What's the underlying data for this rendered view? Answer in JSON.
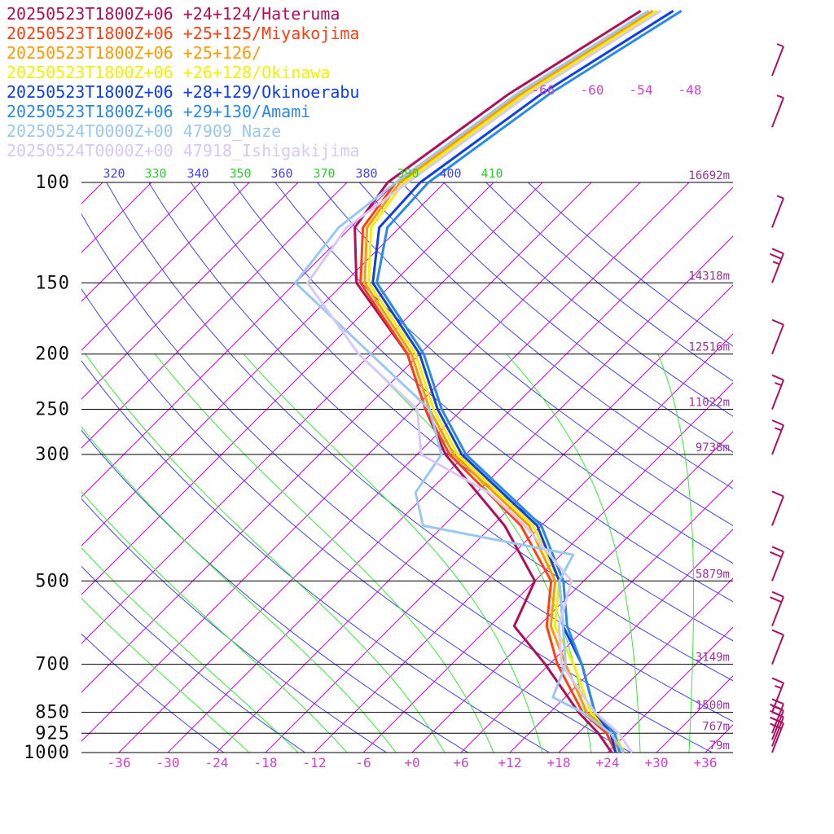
{
  "chart_data": {
    "type": "line",
    "chart_kind": "skew-t log-p sounding",
    "y_axis": {
      "scale": "log",
      "unit": "hPa",
      "range": [
        1000,
        100
      ],
      "ticks": [
        100,
        150,
        200,
        250,
        300,
        500,
        700,
        850,
        925,
        1000
      ]
    },
    "x_axis": {
      "unit": "°C",
      "range": [
        -40,
        40
      ],
      "ticks": [
        "-36",
        "-30",
        "-24",
        "-18",
        "-12",
        "-6",
        "+0",
        "+6",
        "+12",
        "+18",
        "+24",
        "+30",
        "+36"
      ]
    },
    "height_labels": [
      {
        "pressure": 100,
        "label": "16692m"
      },
      {
        "pressure": 150,
        "label": "14318m"
      },
      {
        "pressure": 200,
        "label": "12516m"
      },
      {
        "pressure": 250,
        "label": "11022m"
      },
      {
        "pressure": 300,
        "label": "9738m"
      },
      {
        "pressure": 500,
        "label": "5879m"
      },
      {
        "pressure": 700,
        "label": "3149m"
      },
      {
        "pressure": 850,
        "label": "1500m"
      },
      {
        "pressure": 925,
        "label": "767m"
      },
      {
        "pressure": 1000,
        "label": "79m"
      }
    ],
    "isotherm_labels": [
      "-66",
      "-60",
      "-54",
      "-48"
    ],
    "theta_labels": [
      "320",
      "330",
      "340",
      "350",
      "360",
      "370",
      "380",
      "390",
      "400",
      "410"
    ],
    "grid": true,
    "colors": {
      "isobar": "#000000",
      "isotherm": "#dd00dd",
      "dry_adiabat": "#4444ee",
      "moist_adiabat": "#33ee33",
      "axis_label": "#cc44cc",
      "height_label": "#993399"
    },
    "legend_position": "top-left",
    "series": [
      {
        "name": "20250523T1800Z+06 +24+124/Hateruma",
        "color": "#b0105a",
        "pressure": [
          1000,
          925,
          850,
          700,
          600,
          500,
          400,
          300,
          250,
          200,
          150,
          120,
          100
        ],
        "temperature": [
          24.5,
          20.5,
          15.5,
          5.5,
          -3.0,
          -6.0,
          -16.5,
          -32.5,
          -40.5,
          -49.5,
          -64.5,
          -71.5,
          -73.0
        ]
      },
      {
        "name": "20250523T1800Z+06 +25+125/Miyakojima",
        "color": "#ff4010",
        "pressure": [
          1000,
          925,
          850,
          700,
          600,
          500,
          400,
          300,
          250,
          200,
          150,
          120,
          100
        ],
        "temperature": [
          25.0,
          21.5,
          16.0,
          7.0,
          1.0,
          -4.0,
          -14.5,
          -32.0,
          -40.5,
          -49.5,
          -64.0,
          -70.5,
          -72.0
        ]
      },
      {
        "name": "20250523T1800Z+06 +25+126/",
        "color": "#ff9a00",
        "pressure": [
          1000,
          925,
          850,
          700,
          600,
          500,
          400,
          300,
          250,
          200,
          150,
          120,
          100
        ],
        "temperature": [
          25.5,
          22.0,
          16.5,
          8.0,
          1.5,
          -3.5,
          -13.5,
          -31.5,
          -40.0,
          -49.0,
          -63.5,
          -70.0,
          -71.5
        ]
      },
      {
        "name": "20250523T1800Z+06 +26+128/Okinawa",
        "color": "#f5ef00",
        "pressure": [
          1000,
          925,
          850,
          700,
          600,
          500,
          400,
          300,
          250,
          200,
          150,
          120,
          100
        ],
        "temperature": [
          26.0,
          22.5,
          17.0,
          9.0,
          2.0,
          -3.0,
          -13.0,
          -31.0,
          -39.5,
          -48.5,
          -63.0,
          -69.5,
          -71.0
        ]
      },
      {
        "name": "20250523T1800Z+06 +28+129/Okinoerabu",
        "color": "#1040e0",
        "pressure": [
          1000,
          925,
          850,
          700,
          600,
          500,
          400,
          300,
          250,
          200,
          150,
          120,
          100
        ],
        "temperature": [
          25.0,
          22.0,
          17.5,
          10.0,
          3.0,
          -3.0,
          -12.5,
          -30.5,
          -39.0,
          -48.0,
          -62.5,
          -68.5,
          -69.0
        ]
      },
      {
        "name": "20250523T1800Z+06 +29+130/Amami",
        "color": "#2a8ae8",
        "pressure": [
          1000,
          925,
          850,
          700,
          600,
          500,
          400,
          300,
          250,
          200,
          150,
          120,
          100
        ],
        "temperature": [
          25.5,
          22.5,
          17.5,
          10.0,
          3.5,
          -2.5,
          -12.0,
          -30.0,
          -38.5,
          -47.5,
          -62.0,
          -67.5,
          -68.0
        ]
      },
      {
        "name": "20250524T0000Z+00 47909_Naze",
        "color": "#99c8f0",
        "pressure": [
          1000,
          925,
          850,
          800,
          700,
          600,
          500,
          450,
          400,
          350,
          300,
          250,
          200,
          150,
          120,
          100
        ],
        "temperature": [
          26.0,
          22.0,
          16.0,
          10.5,
          8.0,
          3.0,
          -3.0,
          -4.5,
          -26.5,
          -31.5,
          -33.0,
          -40.0,
          -54.0,
          -72.0,
          -73.5,
          -72.0
        ]
      },
      {
        "name": "20250524T0000Z+00 47918_Ishigakijima",
        "color": "#d8c8f8",
        "pressure": [
          1000,
          925,
          850,
          700,
          600,
          500,
          400,
          350,
          300,
          250,
          200,
          150,
          120,
          100
        ],
        "temperature": [
          27.0,
          23.0,
          17.5,
          7.5,
          2.5,
          -1.5,
          -14.0,
          -22.5,
          -35.5,
          -41.5,
          -55.5,
          -70.5,
          -72.5,
          -70.5
        ]
      }
    ],
    "wind_barbs": [
      {
        "pressure": 1000,
        "speed_kt": 20
      },
      {
        "pressure": 975,
        "speed_kt": 25
      },
      {
        "pressure": 950,
        "speed_kt": 20
      },
      {
        "pressure": 925,
        "speed_kt": 20
      },
      {
        "pressure": 850,
        "speed_kt": 15
      },
      {
        "pressure": 700,
        "speed_kt": 10
      },
      {
        "pressure": 600,
        "speed_kt": 20
      },
      {
        "pressure": 500,
        "speed_kt": 20
      },
      {
        "pressure": 400,
        "speed_kt": 10
      },
      {
        "pressure": 300,
        "speed_kt": 15
      },
      {
        "pressure": 250,
        "speed_kt": 15
      },
      {
        "pressure": 200,
        "speed_kt": 10
      },
      {
        "pressure": 150,
        "speed_kt": 25
      },
      {
        "pressure": 120,
        "speed_kt": 5
      },
      {
        "pressure": 80,
        "speed_kt": 5
      },
      {
        "pressure": 65,
        "speed_kt": 5
      }
    ]
  }
}
